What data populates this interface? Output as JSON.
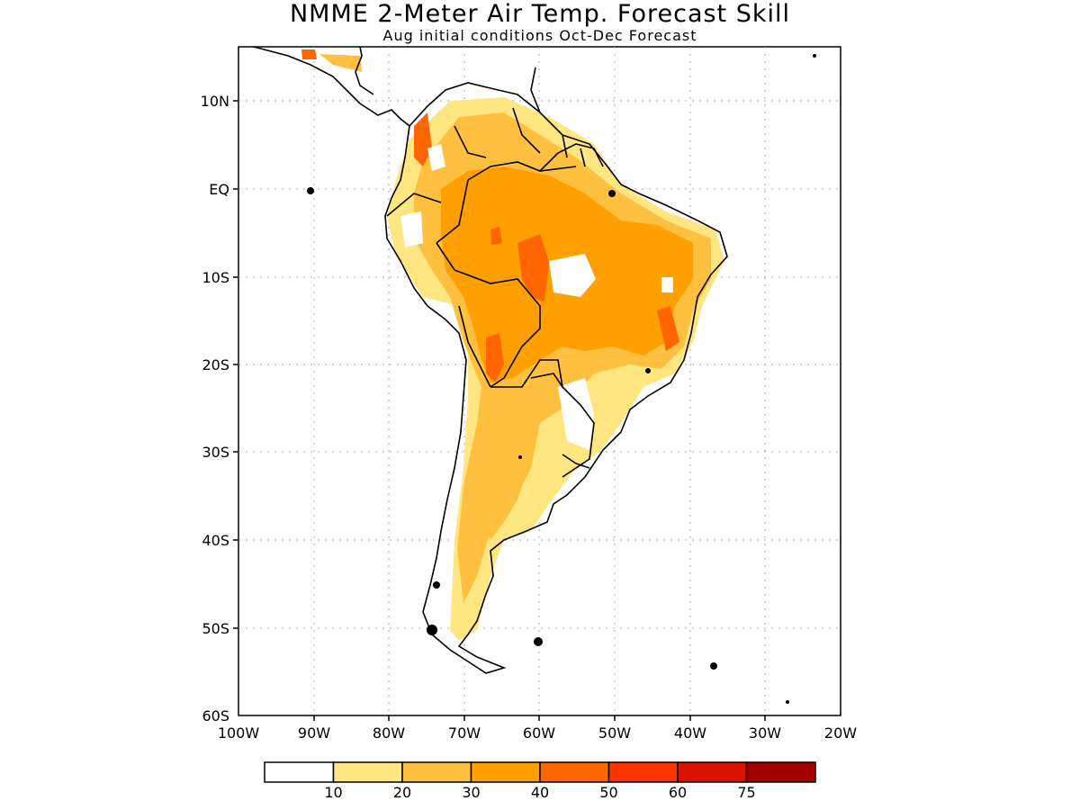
{
  "title": "NMME 2-Meter Air Temp. Forecast Skill",
  "subtitle": "Aug initial conditions  Oct-Dec Forecast",
  "map": {
    "lat_labels": [
      "10N",
      "EQ",
      "10S",
      "20S",
      "30S",
      "40S",
      "50S",
      "60S"
    ],
    "lon_labels": [
      "100W",
      "90W",
      "80W",
      "70W",
      "60W",
      "50W",
      "40W",
      "30W",
      "20W"
    ],
    "extent": {
      "lon_min": -100,
      "lon_max": -20,
      "lat_min": -60,
      "lat_max": 16
    }
  },
  "legend": {
    "bins": [
      {
        "color": "#ffffff"
      },
      {
        "color": "#ffe680",
        "label": "10"
      },
      {
        "color": "#ffc040",
        "label": "20"
      },
      {
        "color": "#ffa000",
        "label": "30"
      },
      {
        "color": "#ff6600",
        "label": "40"
      },
      {
        "color": "#ff3300",
        "label": "50"
      },
      {
        "color": "#dd1100",
        "label": "60"
      },
      {
        "color": "#a50000",
        "label": "75"
      }
    ]
  }
}
